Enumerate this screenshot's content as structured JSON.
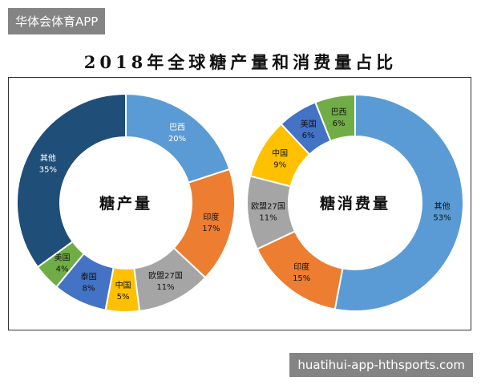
{
  "watermark_top": "华体会体育APP",
  "watermark_bottom": "huatihui-app-hthsports.com",
  "title": "2018年全球糖产量和消费量占比",
  "chart_data": [
    {
      "type": "pie",
      "center_label": "糖产量",
      "slices": [
        {
          "label": "巴西",
          "value": 20,
          "pct": "20%",
          "color": "#5b9bd5",
          "text_color": "#ffffff"
        },
        {
          "label": "印度",
          "value": 17,
          "pct": "17%",
          "color": "#ed7d31",
          "text_color": "#111111"
        },
        {
          "label": "欧盟27国",
          "value": 11,
          "pct": "11%",
          "color": "#a5a5a5",
          "text_color": "#111111"
        },
        {
          "label": "中国",
          "value": 5,
          "pct": "5%",
          "color": "#ffc000",
          "text_color": "#111111"
        },
        {
          "label": "泰国",
          "value": 8,
          "pct": "8%",
          "color": "#4472c4",
          "text_color": "#111111"
        },
        {
          "label": "美国",
          "value": 4,
          "pct": "4%",
          "color": "#70ad47",
          "text_color": "#111111"
        },
        {
          "label": "其他",
          "value": 35,
          "pct": "35%",
          "color": "#1f4e79",
          "text_color": "#ffffff"
        }
      ]
    },
    {
      "type": "pie",
      "center_label": "糖消费量",
      "slices": [
        {
          "label": "其他",
          "value": 53,
          "pct": "53%",
          "color": "#5b9bd5",
          "text_color": "#111111"
        },
        {
          "label": "印度",
          "value": 15,
          "pct": "15%",
          "color": "#ed7d31",
          "text_color": "#111111"
        },
        {
          "label": "欧盟27国",
          "value": 11,
          "pct": "11%",
          "color": "#a5a5a5",
          "text_color": "#111111"
        },
        {
          "label": "中国",
          "value": 9,
          "pct": "9%",
          "color": "#ffc000",
          "text_color": "#111111"
        },
        {
          "label": "美国",
          "value": 6,
          "pct": "6%",
          "color": "#4472c4",
          "text_color": "#111111"
        },
        {
          "label": "巴西",
          "value": 6,
          "pct": "6%",
          "color": "#70ad47",
          "text_color": "#111111"
        }
      ]
    }
  ]
}
